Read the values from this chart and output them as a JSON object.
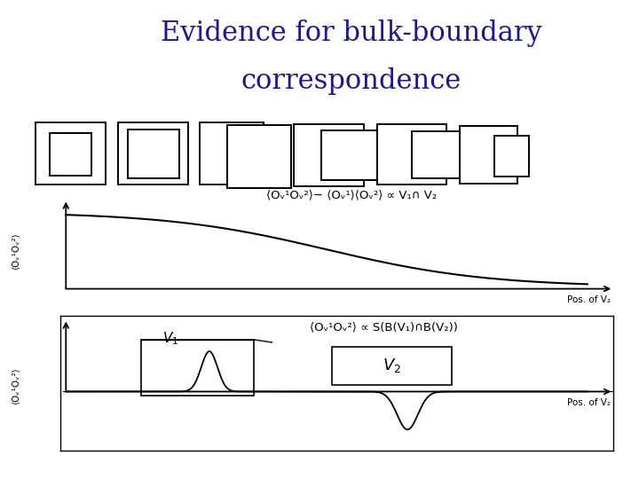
{
  "title_line1": "Evidence for bulk-boundary",
  "title_line2": "correspondence",
  "title_color": "#1a1a8c",
  "title_fontsize": 22,
  "bg_color": "#ffffff",
  "top_formula": "⟨Oᵥ¹Oᵥ²⟩− ⟨Oᵥ¹⟩⟨Oᵥ²⟩ ∝ V₁∩ V₂",
  "bot_formula": "⟨Oᵥ¹Oᵥ²⟩ ∝ S(B(V₁)∩B(V₂))",
  "pos_label": "Pos. of V₂",
  "ylabel_top": "⟨Oᵥ¹Oᵥ²⟩",
  "ylabel_bot": "⟨Oᵥ¹Oᵥ²⟩"
}
